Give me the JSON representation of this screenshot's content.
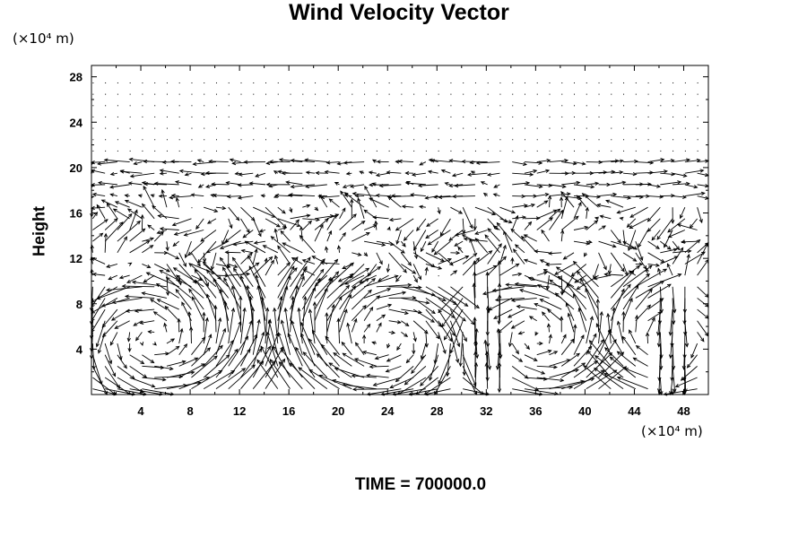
{
  "chart_data": {
    "type": "vector-field",
    "title": "Wind Velocity Vector",
    "ylabel": "Height",
    "xlabel": "",
    "x_unit": "(×10⁴ m)",
    "y_unit": "(×10⁴ m)",
    "annotation": "TIME = 700000.0",
    "xlim": [
      0,
      50
    ],
    "ylim": [
      0,
      29
    ],
    "x_ticks": [
      4,
      8,
      12,
      16,
      20,
      24,
      28,
      32,
      36,
      40,
      44,
      48
    ],
    "y_ticks": [
      4,
      8,
      12,
      16,
      20,
      24,
      28
    ],
    "grid": {
      "x_start": 0.1,
      "x_step": 1.0,
      "x_count": 50,
      "y_start": 0.5,
      "y_step": 1.0,
      "y_count": 28
    }
  }
}
